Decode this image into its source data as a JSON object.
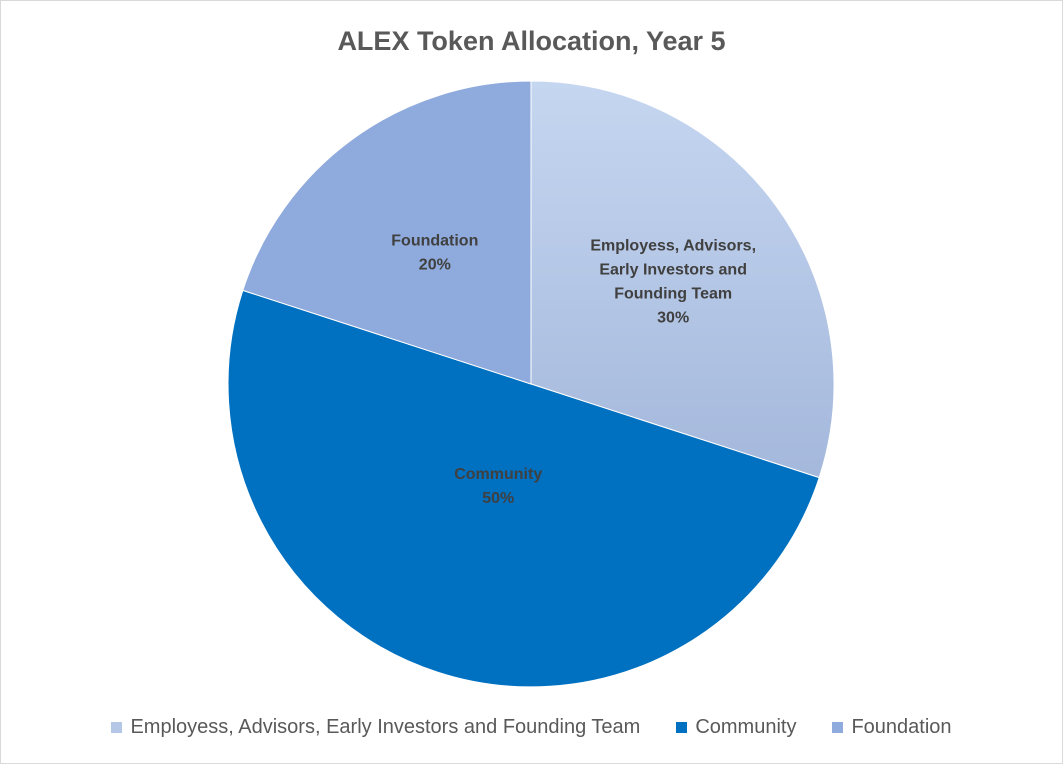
{
  "chart_data": {
    "type": "pie",
    "title": "ALEX Token Allocation, Year 5",
    "slices": [
      {
        "name": "Employess, Advisors, Early Investors and Founding Team",
        "label_lines": [
          "Employess, Advisors,",
          "Early Investors and",
          "Founding Team"
        ],
        "value": 30,
        "value_label": "30%",
        "color": "#b4c7e7"
      },
      {
        "name": "Community",
        "label_lines": [
          "Community"
        ],
        "value": 50,
        "value_label": "50%",
        "color": "#0070c0"
      },
      {
        "name": "Foundation",
        "label_lines": [
          "Foundation"
        ],
        "value": 20,
        "value_label": "20%",
        "color": "#8faadc"
      }
    ],
    "legend_position": "bottom"
  }
}
